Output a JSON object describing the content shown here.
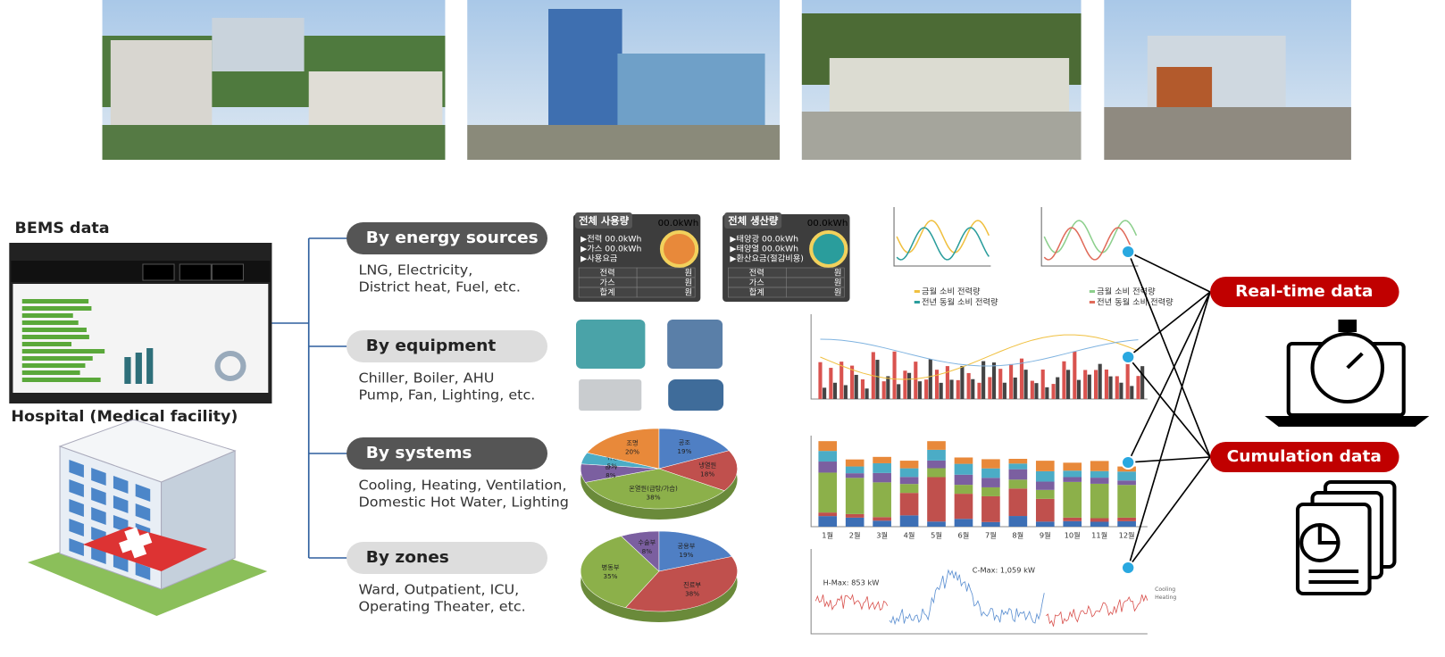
{
  "bems_label": "BEMS data",
  "hospital_label": "Hospital (Medical facility)",
  "groups": [
    {
      "title": "By energy sources",
      "lines": [
        "LNG, Electricity,",
        "District heat, Fuel, etc."
      ]
    },
    {
      "title": "By equipment",
      "lines": [
        "Chiller, Boiler, AHU",
        "Pump, Fan, Lighting, etc."
      ]
    },
    {
      "title": "By systems",
      "lines": [
        "Cooling, Heating, Ventilation,",
        "Domestic Hot Water, Lighting"
      ]
    },
    {
      "title": "By zones",
      "lines": [
        "Ward, Outpatient, ICU,",
        "Operating Theater, etc."
      ]
    }
  ],
  "outputs": [
    "Real-time data",
    "Cumulation data"
  ],
  "usage_panel": {
    "title": "전체 사용량",
    "total": "00.0kWh",
    "rows": [
      "▶전력 00.0kWh",
      "▶가스 00.0kWh",
      "▶사용요금"
    ],
    "table": [
      [
        "전력",
        "원"
      ],
      [
        "가스",
        "원"
      ],
      [
        "합계",
        "원"
      ]
    ]
  },
  "production_panel": {
    "title": "전체 생산량",
    "total": "00.0kWh",
    "rows": [
      "▶태양광 00.0kWh",
      "▶태양열 00.0kWh",
      "▶환산요금(절감비용)"
    ],
    "table": [
      [
        "전력",
        "원"
      ],
      [
        "가스",
        "원"
      ],
      [
        "합계",
        "원"
      ]
    ]
  },
  "daily_legends": [
    [
      "금월 소비 전력량",
      "전년 동월 소비 전력량"
    ],
    [
      "금월 소비 전력량",
      "전년 동월 소비 전력량"
    ]
  ],
  "systems_pie": {
    "labels": [
      "공조",
      "냉열원",
      "온열원(급탕/가습)",
      "환기",
      "위생",
      "조명"
    ],
    "values": [
      19,
      18,
      38,
      8,
      5,
      20
    ],
    "value_labels": [
      "19%",
      "18%",
      "38%",
      "8%",
      "5%",
      "20%"
    ],
    "colors": [
      "#4f7fc4",
      "#c0504d",
      "#8cb04a",
      "#7b5fa0",
      "#4bacc6",
      "#e8893a"
    ]
  },
  "zones_pie": {
    "labels": [
      "공용부",
      "진료부",
      "병동부",
      "수술부"
    ],
    "values": [
      19,
      38,
      35,
      8
    ],
    "value_labels": [
      "19%",
      "38%",
      "35%",
      "8%"
    ],
    "colors": [
      "#4f7fc4",
      "#c0504d",
      "#8cb04a",
      "#7b5fa0"
    ]
  },
  "peak_labels": [
    "H-Max: 853 kW",
    "C-Max: 1,059 kW"
  ],
  "peak_legend": [
    "Cooling",
    "Heating"
  ],
  "months": [
    "1월",
    "2월",
    "3월",
    "4월",
    "5월",
    "6월",
    "7월",
    "8월",
    "9월",
    "10월",
    "11월",
    "12월"
  ]
}
